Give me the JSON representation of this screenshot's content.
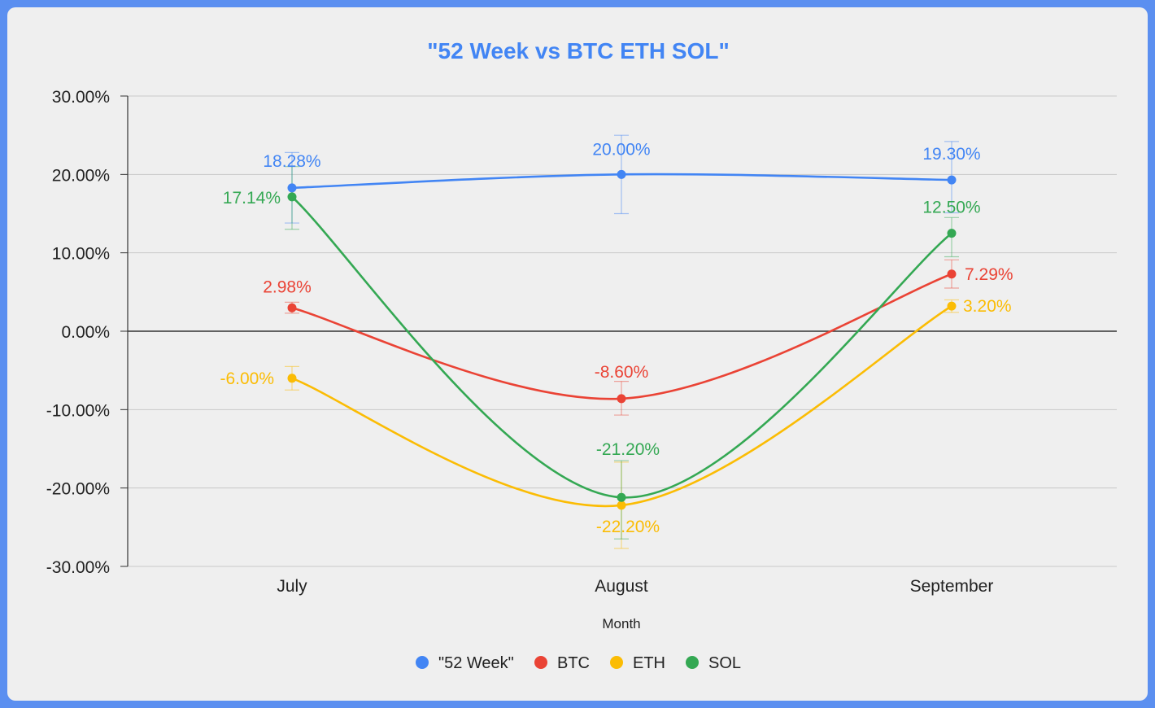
{
  "chart_data": {
    "type": "line",
    "title": "\"52 Week vs BTC ETH SOL\"",
    "xlabel": "Month",
    "ylabel": "",
    "categories": [
      "July",
      "August",
      "September"
    ],
    "ylim": [
      -30,
      30
    ],
    "yticks": [
      30,
      20,
      10,
      0,
      -10,
      -20,
      -30
    ],
    "ytick_labels": [
      "30.00%",
      "20.00%",
      "10.00%",
      "0.00%",
      "-10.00%",
      "-20.00%",
      "-30.00%"
    ],
    "grid": true,
    "legend_position": "bottom",
    "smooth": true,
    "series": [
      {
        "name": "\"52 Week\"",
        "color": "#4285f4",
        "values": [
          18.28,
          20.0,
          19.3
        ],
        "labels": [
          "18.28%",
          "20.00%",
          "19.30%"
        ],
        "error_low": [
          13.8,
          15.0,
          15.1
        ],
        "error_high": [
          22.8,
          25.0,
          24.2
        ]
      },
      {
        "name": "BTC",
        "color": "#ea4335",
        "values": [
          2.98,
          -8.6,
          7.29
        ],
        "labels": [
          "2.98%",
          "-8.60%",
          "7.29%"
        ],
        "error_low": [
          2.3,
          -10.7,
          5.5
        ],
        "error_high": [
          3.7,
          -6.4,
          9.1
        ]
      },
      {
        "name": "ETH",
        "color": "#fbbc04",
        "values": [
          -6.0,
          -22.2,
          3.2
        ],
        "labels": [
          "-6.00%",
          "-22.20%",
          "3.20%"
        ],
        "error_low": [
          -7.5,
          -27.7,
          2.4
        ],
        "error_high": [
          -4.5,
          -16.7,
          4.0
        ]
      },
      {
        "name": "SOL",
        "color": "#34a853",
        "values": [
          17.14,
          -21.2,
          12.5
        ],
        "labels": [
          "17.14%",
          "-21.20%",
          "12.50%"
        ],
        "error_low": [
          13.0,
          -26.5,
          9.5
        ],
        "error_high": [
          21.0,
          -16.5,
          14.5
        ]
      }
    ]
  }
}
